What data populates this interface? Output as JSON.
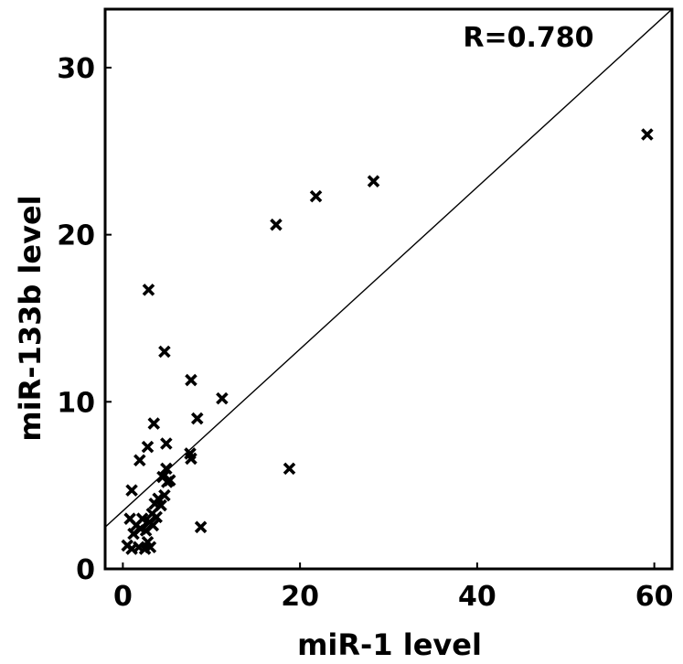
{
  "chart_data": {
    "type": "scatter",
    "title": "",
    "xlabel": "miR-1 level",
    "ylabel": "miR-133b level",
    "xlim": [
      -2,
      62
    ],
    "ylim": [
      0,
      33.5
    ],
    "xticks": [
      0,
      20,
      40,
      60
    ],
    "yticks": [
      0,
      10,
      20,
      30
    ],
    "xtick_labels": [
      "0",
      "20",
      "40",
      "60"
    ],
    "ytick_labels": [
      "0",
      "10",
      "20",
      "30"
    ],
    "grid": false,
    "marker": "x",
    "annotation": "R=0.780",
    "regression_line": {
      "x": [
        -2,
        62
      ],
      "y": [
        2.5,
        33.5
      ]
    },
    "series": [
      {
        "name": "samples",
        "points": [
          [
            0.5,
            1.4
          ],
          [
            1.0,
            1.2
          ],
          [
            1.2,
            2.1
          ],
          [
            1.5,
            2.6
          ],
          [
            1.8,
            1.3
          ],
          [
            2.0,
            2.4
          ],
          [
            2.2,
            3.0
          ],
          [
            2.5,
            1.2
          ],
          [
            2.6,
            2.3
          ],
          [
            2.8,
            1.6
          ],
          [
            3.0,
            2.8
          ],
          [
            3.1,
            1.3
          ],
          [
            3.3,
            3.3
          ],
          [
            3.4,
            2.6
          ],
          [
            3.6,
            3.9
          ],
          [
            3.8,
            3.1
          ],
          [
            4.0,
            4.2
          ],
          [
            4.3,
            3.8
          ],
          [
            4.5,
            5.5
          ],
          [
            4.7,
            4.4
          ],
          [
            4.9,
            6.0
          ],
          [
            5.0,
            5.2
          ],
          [
            1.0,
            4.7
          ],
          [
            0.8,
            3.0
          ],
          [
            1.9,
            6.5
          ],
          [
            2.8,
            7.3
          ],
          [
            3.5,
            8.7
          ],
          [
            4.9,
            7.5
          ],
          [
            5.3,
            5.3
          ],
          [
            7.6,
            6.9
          ],
          [
            7.7,
            6.6
          ],
          [
            8.4,
            9.0
          ],
          [
            7.7,
            11.3
          ],
          [
            11.2,
            10.2
          ],
          [
            4.7,
            13.0
          ],
          [
            2.9,
            16.7
          ],
          [
            8.8,
            2.5
          ],
          [
            18.8,
            6.0
          ],
          [
            17.3,
            20.6
          ],
          [
            21.8,
            22.3
          ],
          [
            28.3,
            23.2
          ],
          [
            59.2,
            26.0
          ]
        ]
      }
    ]
  }
}
